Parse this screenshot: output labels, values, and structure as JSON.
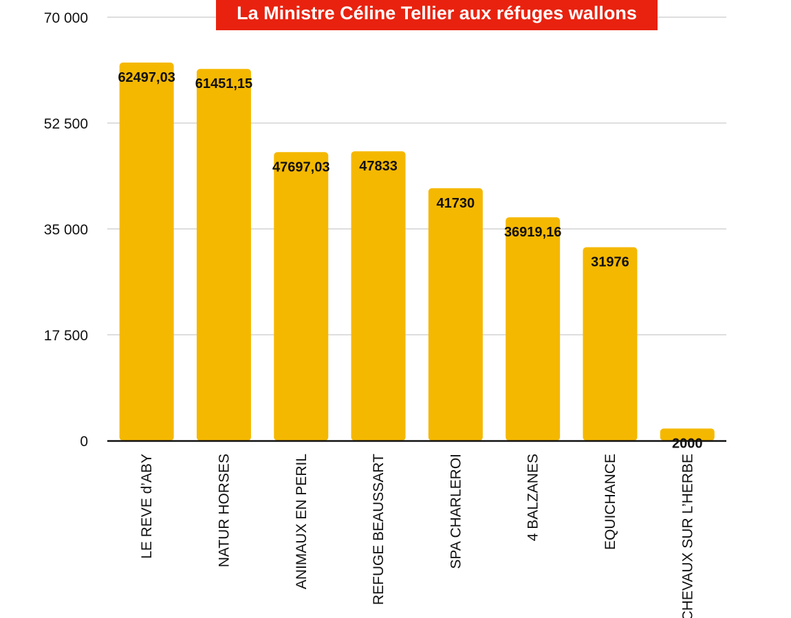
{
  "chart_data": {
    "type": "bar",
    "title": "La Ministre Céline Tellier aux réfuges wallons",
    "categories": [
      "LE REVE d’ABY",
      "NATUR HORSES",
      "ANIMAUX EN PERIL",
      "REFUGE BEAUSSART",
      "SPA CHARLEROI",
      "4 BALZANES",
      "EQUICHANCE",
      "CHEVAUX SUR L’HERBE"
    ],
    "values": [
      62497.03,
      61451.15,
      47697.03,
      47833,
      41730,
      36919.16,
      31976,
      2000
    ],
    "value_labels": [
      "62497,03",
      "61451,15",
      "47697,03",
      "47833",
      "41730",
      "36919,16",
      "31976",
      "2000"
    ],
    "ylim": [
      0,
      70000
    ],
    "yticks": [
      0,
      17500,
      35000,
      52500,
      70000
    ],
    "ytick_labels": [
      "0",
      "17 500",
      "35 000",
      "52 500",
      "70 000"
    ],
    "xlabel": "",
    "ylabel": "",
    "grid": true,
    "legend": "none",
    "colors": {
      "bar": "#f5b800",
      "title_bg": "#e8220f",
      "title_text": "#ffffff",
      "grid": "#bdbdbd",
      "axis": "#111111"
    }
  }
}
